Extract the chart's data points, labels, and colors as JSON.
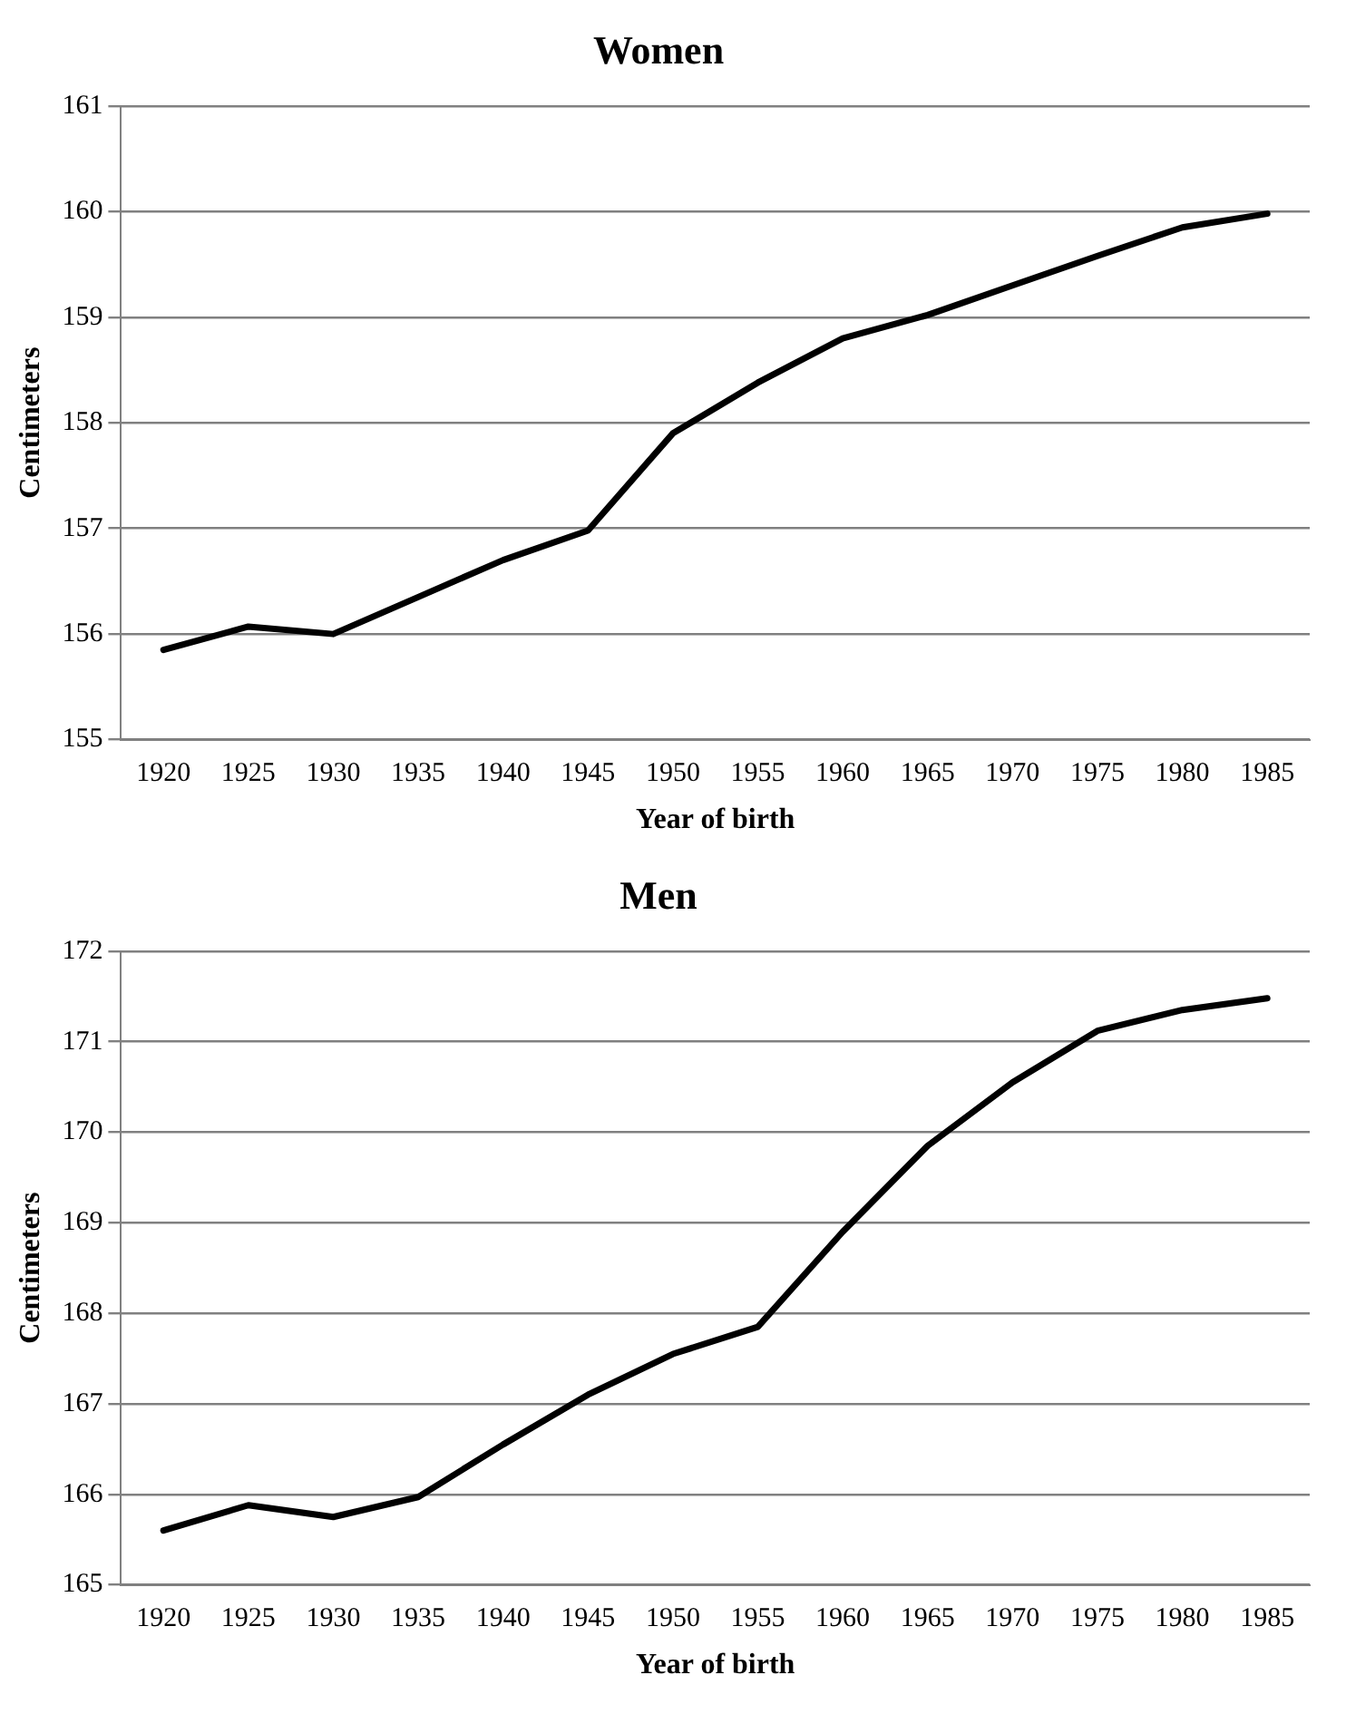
{
  "chart_data": [
    {
      "type": "line",
      "title": "Women",
      "xlabel": "Year of birth",
      "ylabel": "Centimeters",
      "categories": [
        "1920",
        "1925",
        "1930",
        "1935",
        "1940",
        "1945",
        "1950",
        "1955",
        "1960",
        "1965",
        "1970",
        "1975",
        "1980",
        "1985"
      ],
      "series": [
        {
          "color": "#000000",
          "values": [
            155.85,
            156.07,
            156.0,
            156.35,
            156.7,
            156.98,
            157.9,
            158.38,
            158.8,
            159.02,
            159.3,
            159.58,
            159.85,
            159.98
          ]
        }
      ],
      "ylim": [
        155,
        161
      ],
      "yticks": [
        155,
        156,
        157,
        158,
        159,
        160,
        161
      ],
      "grid": "y",
      "legend": false,
      "marker": "none",
      "line_style": "solid"
    },
    {
      "type": "line",
      "title": "Men",
      "xlabel": "Year of birth",
      "ylabel": "Centimeters",
      "categories": [
        "1920",
        "1925",
        "1930",
        "1935",
        "1940",
        "1945",
        "1950",
        "1955",
        "1960",
        "1965",
        "1970",
        "1975",
        "1980",
        "1985"
      ],
      "series": [
        {
          "color": "#000000",
          "values": [
            165.6,
            165.88,
            165.75,
            165.97,
            166.55,
            167.1,
            167.55,
            167.85,
            168.9,
            169.85,
            170.55,
            171.12,
            171.35,
            171.48
          ]
        }
      ],
      "ylim": [
        165,
        172
      ],
      "yticks": [
        165,
        166,
        167,
        168,
        169,
        170,
        171,
        172
      ],
      "grid": "y",
      "legend": false,
      "marker": "none",
      "line_style": "solid"
    }
  ]
}
